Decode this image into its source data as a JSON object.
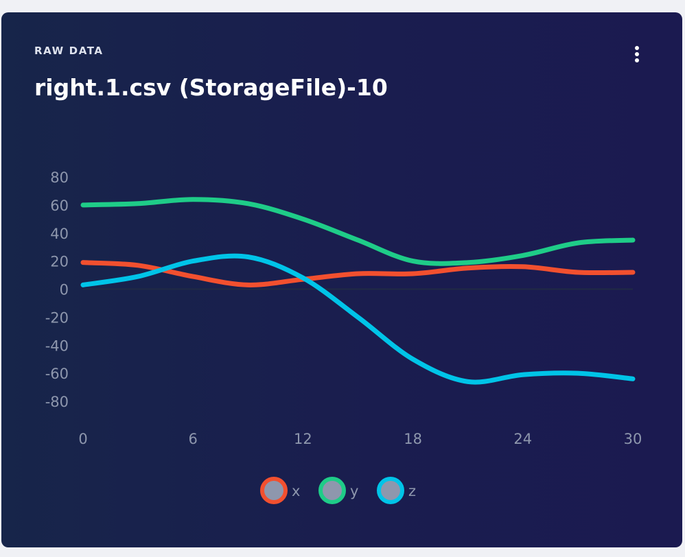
{
  "header": {
    "eyebrow": "RAW DATA",
    "title": "right.1.csv (StorageFile)-10"
  },
  "menu": {
    "icon": "more-vertical-icon"
  },
  "colors": {
    "x": "#f2502f",
    "y": "#1fcc88",
    "z": "#00c4e8",
    "zero_line": "#202a44",
    "legend_fill": "#8e97ad"
  },
  "chart_data": {
    "type": "line",
    "xlim": [
      0,
      30
    ],
    "ylim": [
      -80,
      80
    ],
    "xticks": [
      0,
      6,
      12,
      18,
      24,
      30
    ],
    "yticks": [
      80,
      60,
      40,
      20,
      0,
      -20,
      -40,
      -60,
      -80
    ],
    "x": [
      0,
      3,
      6,
      9,
      12,
      15,
      18,
      21,
      24,
      27,
      30
    ],
    "series": [
      {
        "name": "x",
        "values": [
          19,
          17,
          9,
          3,
          7,
          11,
          11,
          15,
          16,
          12,
          12
        ]
      },
      {
        "name": "y",
        "values": [
          60,
          61,
          64,
          61,
          50,
          35,
          20,
          19,
          24,
          33,
          35
        ]
      },
      {
        "name": "z",
        "values": [
          3,
          9,
          20,
          23,
          8,
          -20,
          -50,
          -66,
          -61,
          -60,
          -64
        ]
      }
    ]
  }
}
